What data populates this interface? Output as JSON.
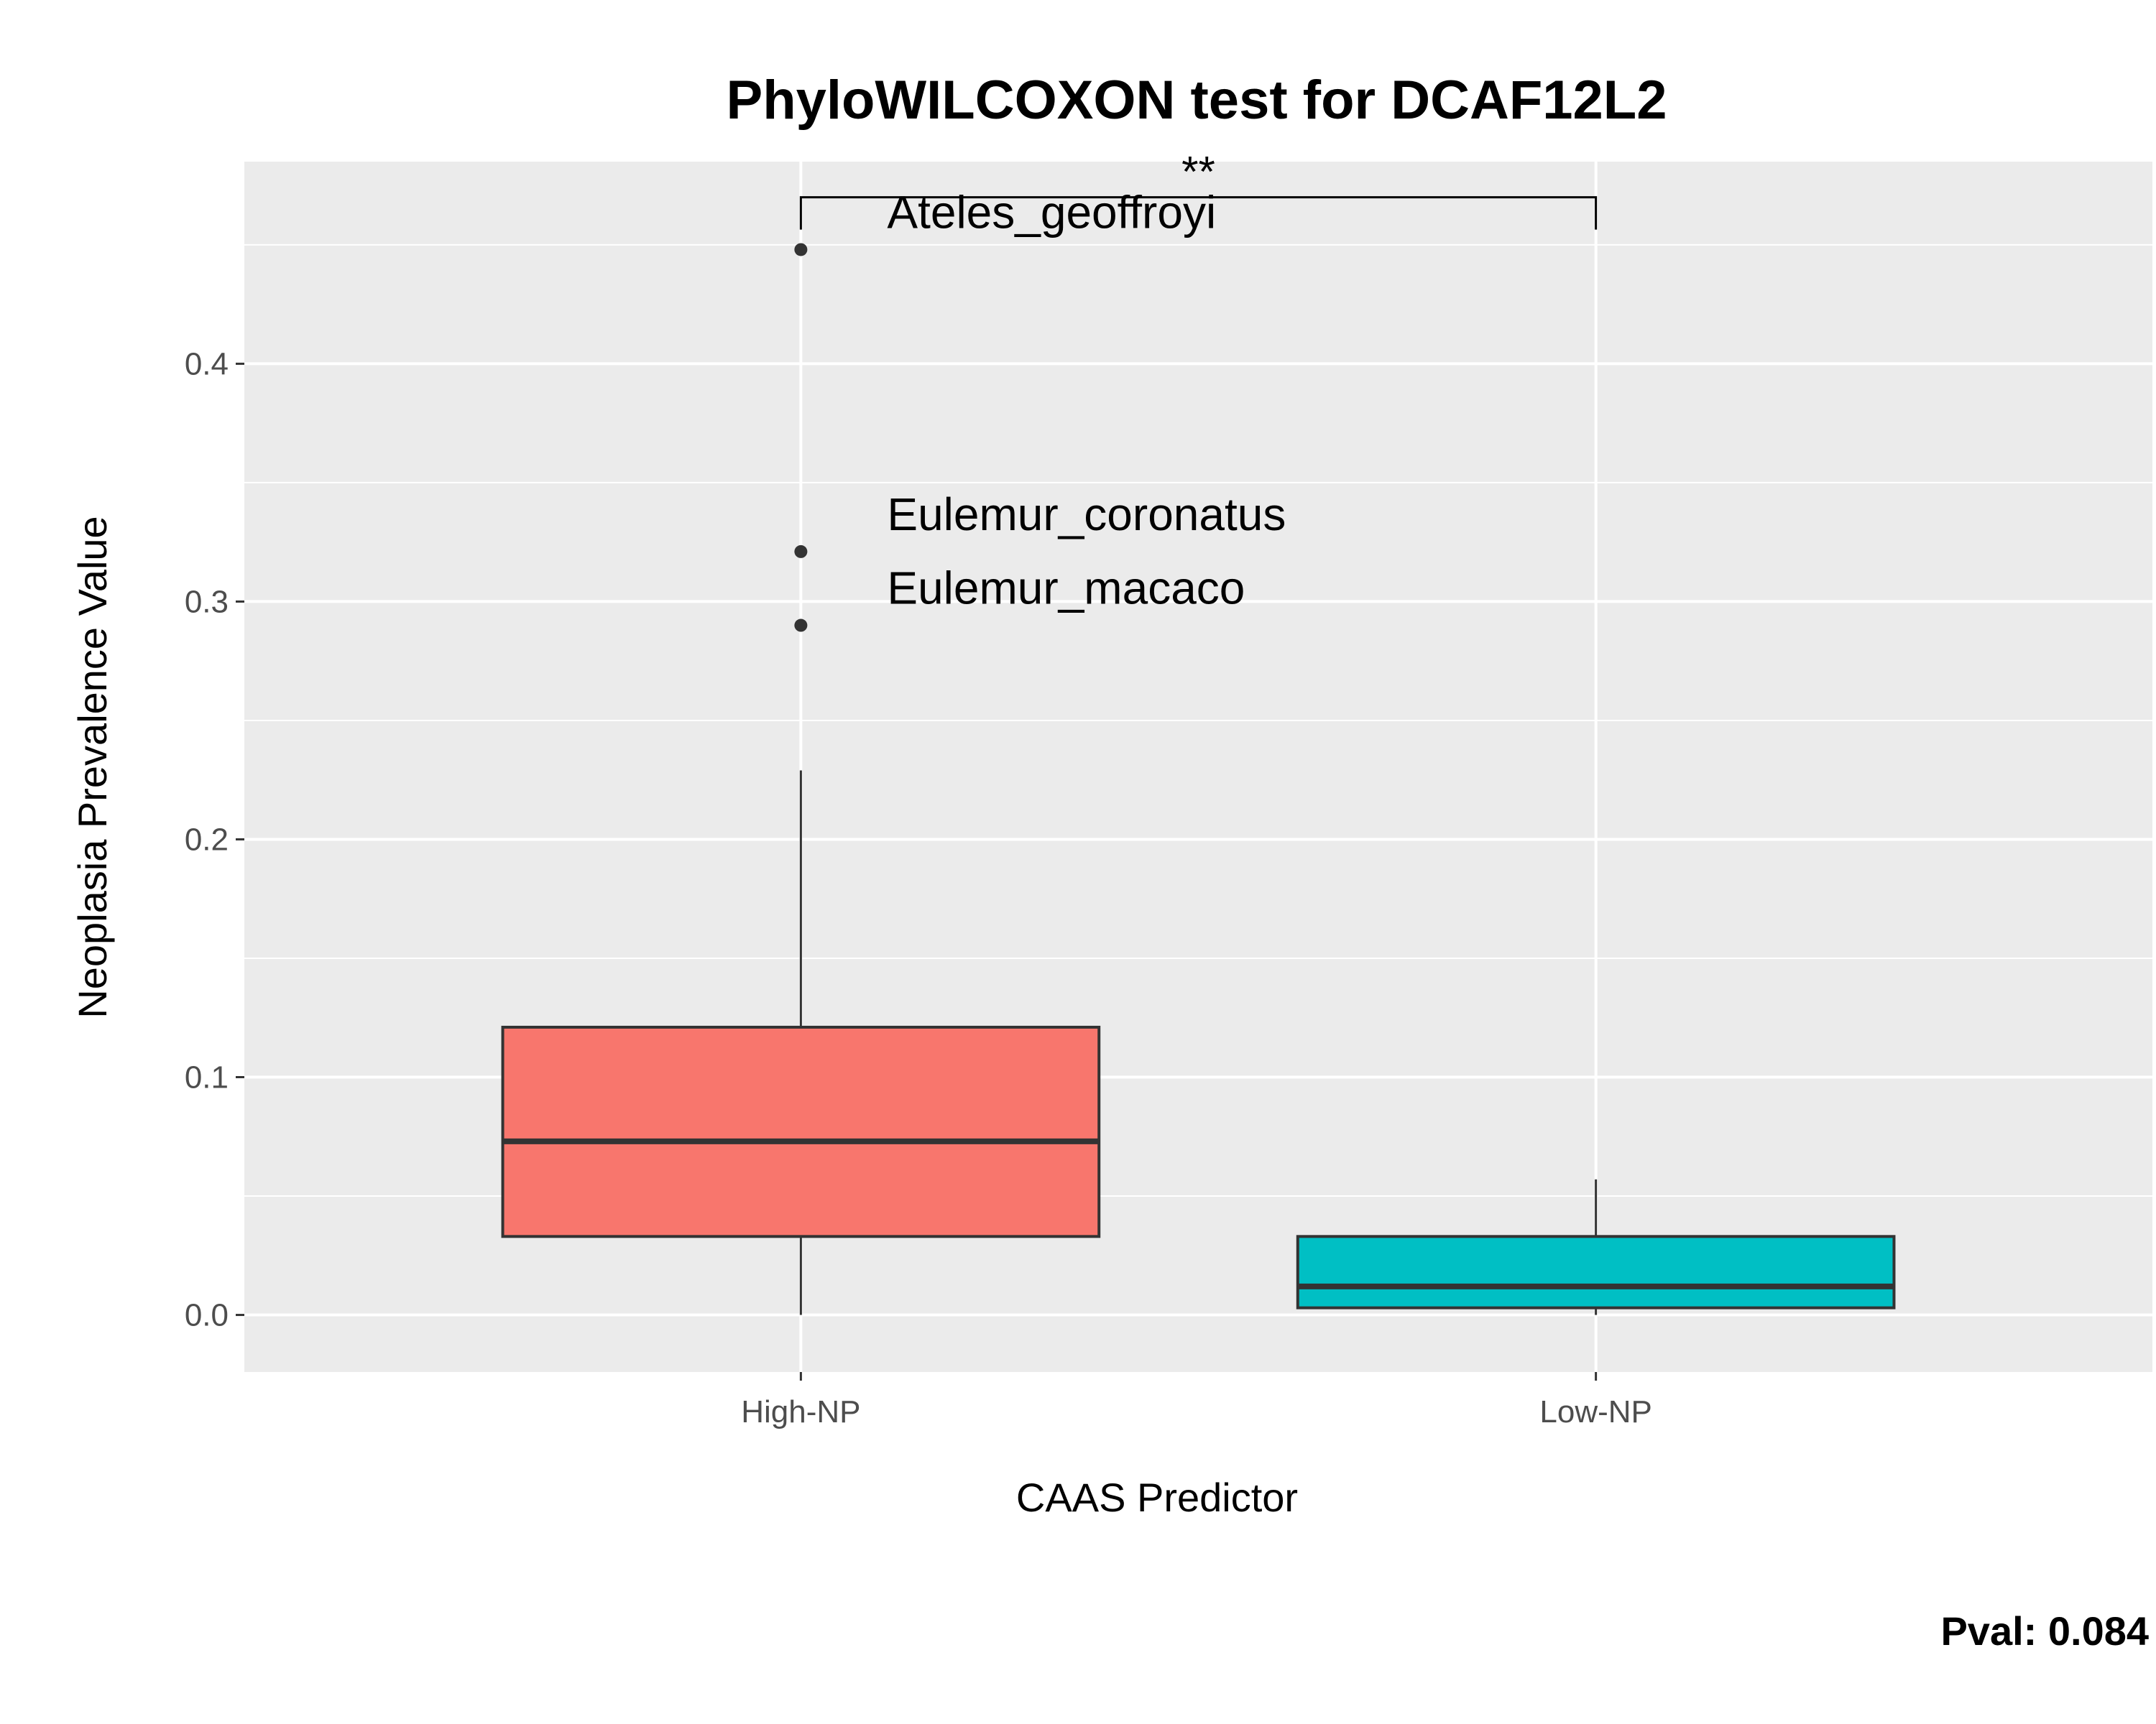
{
  "chart_data": {
    "type": "boxplot",
    "title": "PhyloWILCOXON test for DCAF12L2",
    "xlabel": "CAAS Predictor",
    "ylabel": "Neoplasia Prevalence Value",
    "categories": [
      "High-NP",
      "Low-NP"
    ],
    "ylim": [
      -0.024,
      0.485
    ],
    "yticks": [
      0.0,
      0.1,
      0.2,
      0.3,
      0.4
    ],
    "ytick_labels": [
      "0.0",
      "0.1",
      "0.2",
      "0.3",
      "0.4"
    ],
    "grid": true,
    "boxes": [
      {
        "category": "High-NP",
        "whisker_low": 0.0,
        "q1": 0.033,
        "median": 0.073,
        "q3": 0.121,
        "whisker_high": 0.229,
        "fill": "#F8766D"
      },
      {
        "category": "Low-NP",
        "whisker_low": 0.0,
        "q1": 0.003,
        "median": 0.012,
        "q3": 0.033,
        "whisker_high": 0.057,
        "fill": "#00BFC4"
      }
    ],
    "outliers": [
      {
        "category": "High-NP",
        "y": 0.448,
        "label": "Ateles_geoffroyi"
      },
      {
        "category": "High-NP",
        "y": 0.321,
        "label": "Eulemur_coronatus"
      },
      {
        "category": "High-NP",
        "y": 0.29,
        "label": "Eulemur_macaco"
      }
    ],
    "significance": {
      "from": "High-NP",
      "to": "Low-NP",
      "y": 0.47,
      "label": "**"
    },
    "annotation": "Pval:  0.084",
    "colors": {
      "panel": "#EBEBEB",
      "grid": "#FFFFFF",
      "box_line": "#333333",
      "point": "#333333"
    }
  }
}
